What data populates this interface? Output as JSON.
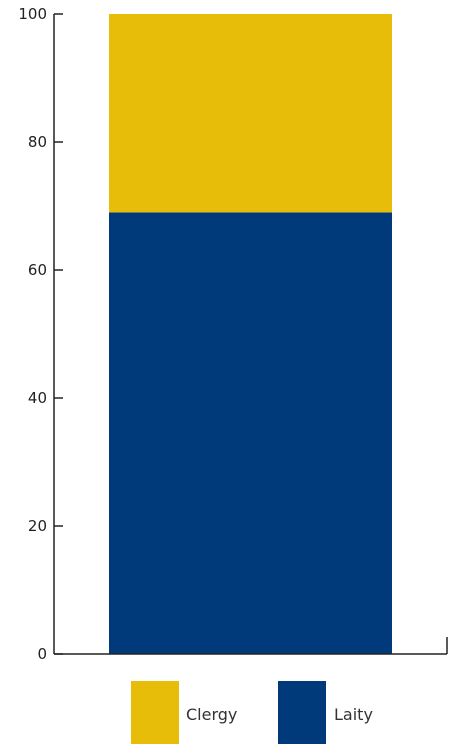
{
  "chart_data": {
    "type": "bar",
    "stacked": true,
    "categories": [
      ""
    ],
    "series": [
      {
        "name": "Laity",
        "values": [
          69
        ],
        "color": "#003a7a"
      },
      {
        "name": "Clergy",
        "values": [
          31
        ],
        "color": "#e8bd0a"
      }
    ],
    "ylim": [
      0,
      100
    ],
    "yticks": [
      0,
      20,
      40,
      60,
      80,
      100
    ],
    "ytick_labels": [
      "0",
      "20",
      "40",
      "60",
      "80",
      "100"
    ],
    "title": "",
    "xlabel": "",
    "ylabel": "",
    "grid": false,
    "legend": {
      "position": "bottom",
      "entries": [
        {
          "label": "Clergy",
          "color": "#e8bd0a"
        },
        {
          "label": "Laity",
          "color": "#003a7a"
        }
      ]
    }
  }
}
